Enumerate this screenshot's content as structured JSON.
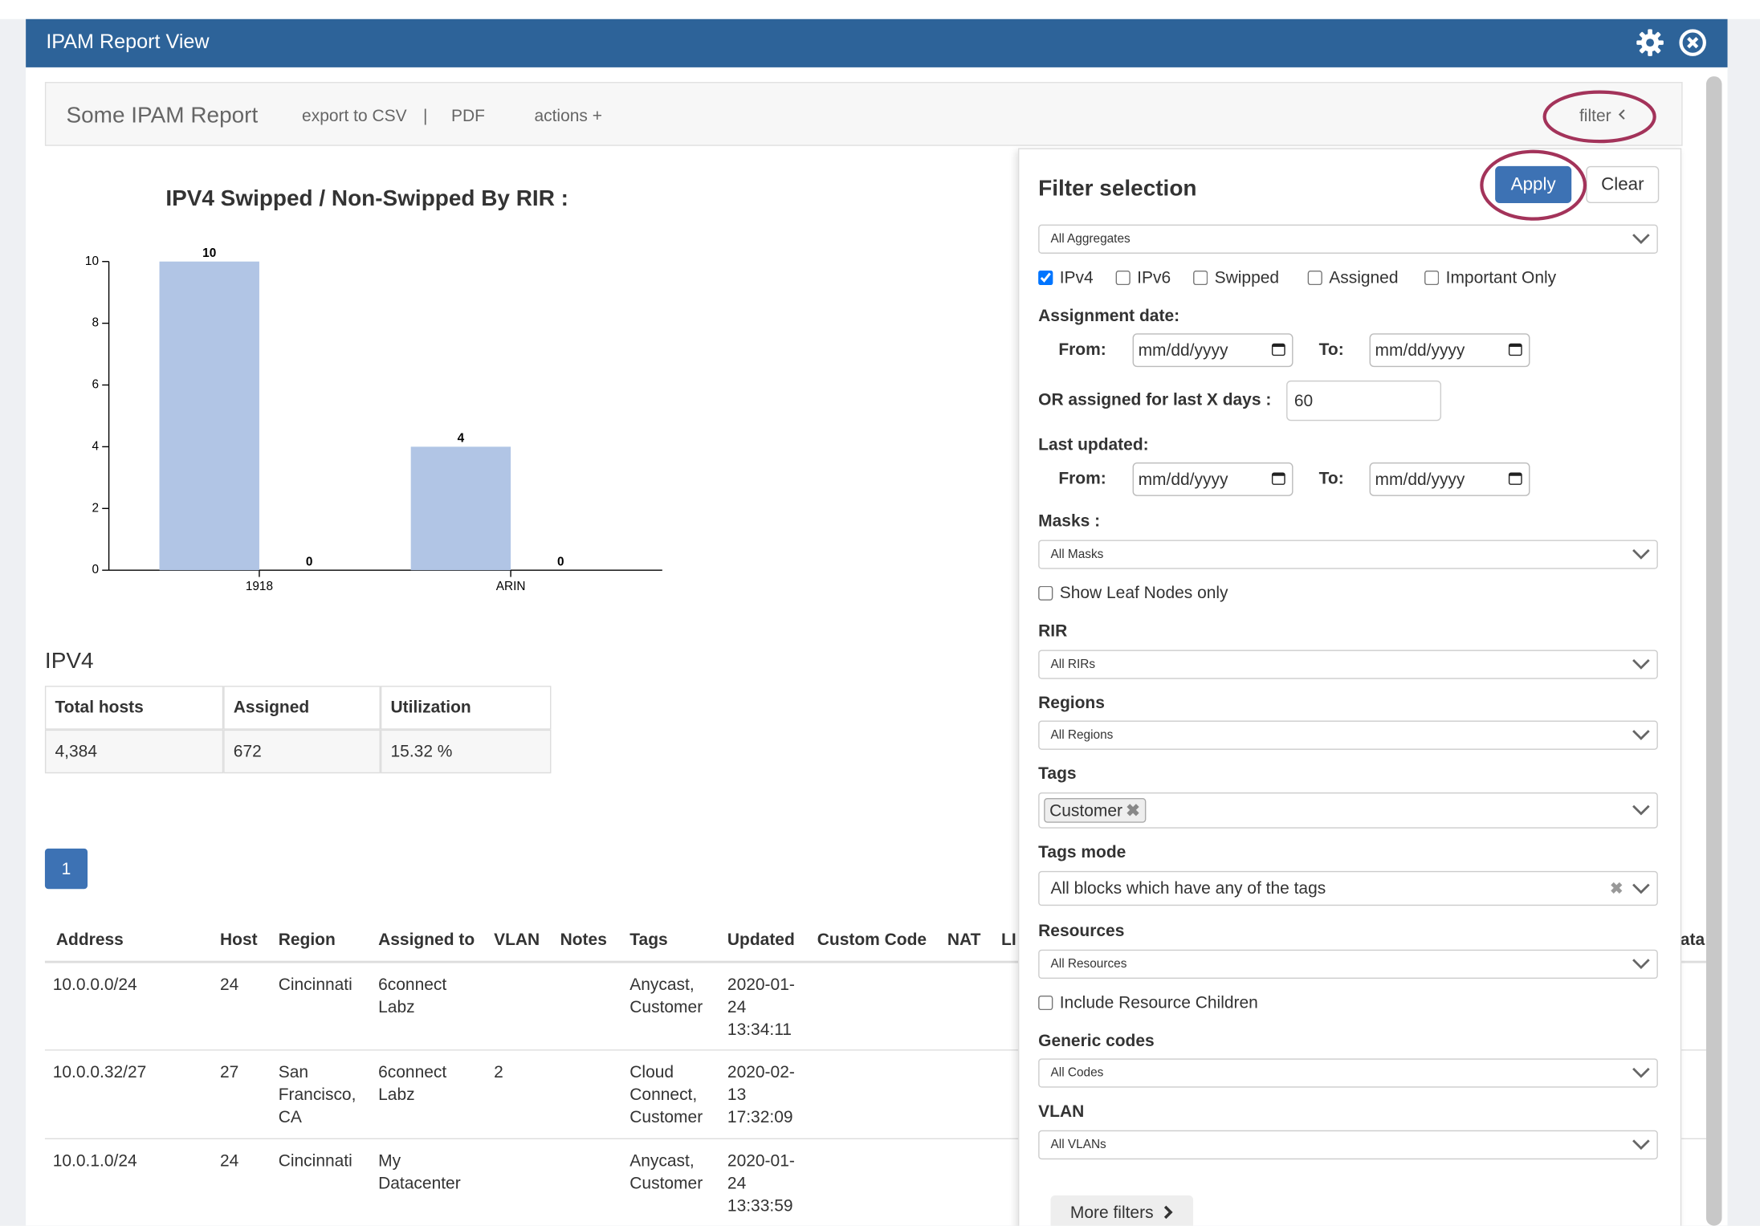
{
  "header": {
    "title": "IPAM Report View"
  },
  "toolbar": {
    "report_name": "Some IPAM Report",
    "export_csv": "export to CSV",
    "separator": "|",
    "pdf": "PDF",
    "actions": "actions +",
    "filter": "filter"
  },
  "chart_data": {
    "type": "bar",
    "title": "IPV4 Swipped / Non-Swipped By RIR :",
    "categories": [
      "1918",
      "ARIN"
    ],
    "series": [
      {
        "color": "#b1c5e5",
        "values": [
          10,
          4
        ]
      },
      {
        "color": "#b1c5e5",
        "values": [
          0,
          0
        ]
      }
    ],
    "ylim": [
      0,
      10
    ],
    "yticks": [
      0,
      2,
      4,
      6,
      8,
      10
    ]
  },
  "summary": {
    "title": "IPV4",
    "headers": [
      "Total hosts",
      "Assigned",
      "Utilization"
    ],
    "rows": [
      [
        "4,384",
        "672",
        "15.32 %"
      ]
    ]
  },
  "pagination": [
    "1"
  ],
  "table": {
    "headers": [
      "Address",
      "Host",
      "Region",
      "Assigned to",
      "VLAN",
      "Notes",
      "Tags",
      "Updated",
      "Custom Code",
      "NAT",
      "LI",
      "ata"
    ],
    "rows": [
      [
        "10.0.0.0/24",
        "24",
        "Cincinnati",
        "6connect Labz",
        "",
        "",
        "Anycast, Customer",
        "2020-01-24 13:34:11"
      ],
      [
        "10.0.0.32/27",
        "27",
        "San Francisco, CA",
        "6connect Labz",
        "2",
        "",
        "Cloud Connect, Customer",
        "2020-02-13 17:32:09"
      ],
      [
        "10.0.1.0/24",
        "24",
        "Cincinnati",
        "My Datacenter",
        "",
        "",
        "Anycast, Customer",
        "2020-01-24 13:33:59"
      ]
    ]
  },
  "filter": {
    "title": "Filter selection",
    "apply": "Apply",
    "clear": "Clear",
    "aggregates": "All Aggregates",
    "checkboxes": [
      {
        "label": "IPv4",
        "checked": true
      },
      {
        "label": "IPv6",
        "checked": false
      },
      {
        "label": "Swipped",
        "checked": false
      },
      {
        "label": "Assigned",
        "checked": false
      },
      {
        "label": "Important Only",
        "checked": false
      }
    ],
    "assignment_date": "Assignment date:",
    "from": "From:",
    "to": "To:",
    "date_placeholder": "mm/dd/yyyy",
    "last_x_days_label": "OR assigned for last X days :",
    "last_x_days": "60",
    "last_updated": "Last updated:",
    "masks_label": "Masks :",
    "masks": "All Masks",
    "leaf_nodes": "Show Leaf Nodes only",
    "rir_label": "RIR",
    "rir": "All RIRs",
    "regions_label": "Regions",
    "regions": "All Regions",
    "tags_label": "Tags",
    "tag_chip": "Customer",
    "tags_mode_label": "Tags mode",
    "tags_mode": "All blocks which have any of the tags",
    "resources_label": "Resources",
    "resources": "All Resources",
    "resource_children": "Include Resource Children",
    "generic_codes_label": "Generic codes",
    "generic_codes": "All Codes",
    "vlan_label": "VLAN",
    "vlan": "All VLANs",
    "more_filters": "More filters"
  }
}
